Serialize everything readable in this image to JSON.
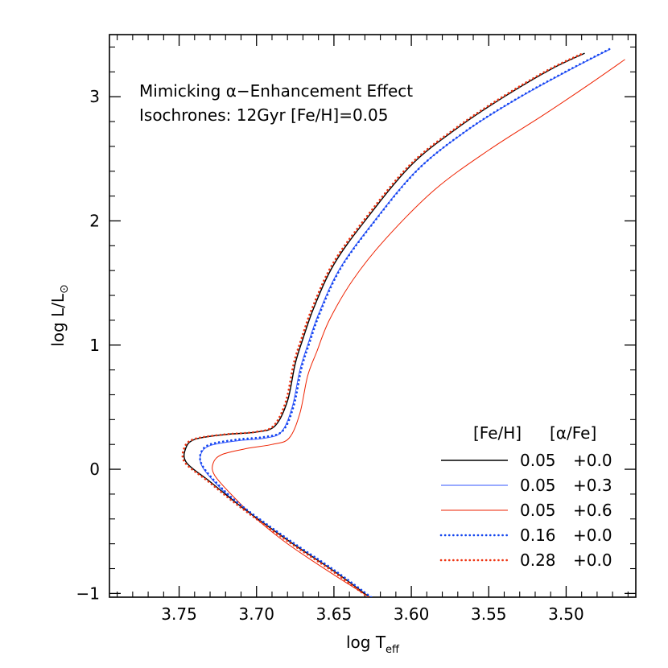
{
  "chart_data": {
    "type": "line",
    "annotations": [
      "Mimicking α−Enhancement Effect",
      "Isochrones: 12Gyr [Fe/H]=0.05"
    ],
    "xlabel": {
      "main": "log T",
      "sub": "eff"
    },
    "ylabel": {
      "main": "log L/L",
      "sub": "⊙"
    },
    "xlim": [
      3.795,
      3.455
    ],
    "ylim": [
      -1.03,
      3.5
    ],
    "x_ticks": [
      3.75,
      3.7,
      3.65,
      3.6,
      3.55,
      3.5
    ],
    "x_tick_labels": [
      "3.75",
      "3.70",
      "3.65",
      "3.60",
      "3.55",
      "3.50"
    ],
    "y_ticks": [
      -1,
      0,
      1,
      2,
      3
    ],
    "y_tick_labels": [
      "−1",
      "0",
      "1",
      "2",
      "3"
    ],
    "grid": false,
    "legend_position": "bottom-right",
    "legend_header": [
      "[Fe/H]",
      "[α/Fe]"
    ],
    "series": [
      {
        "feh": "0.05",
        "afe": "+0.0",
        "color": "#000000",
        "style": "solid",
        "x": [
          3.627,
          3.65,
          3.68,
          3.71,
          3.73,
          3.745,
          3.746,
          3.74,
          3.72,
          3.7,
          3.688,
          3.68,
          3.675,
          3.67,
          3.663,
          3.65,
          3.63,
          3.6,
          3.57,
          3.54,
          3.51,
          3.488
        ],
        "y": [
          -1.03,
          -0.82,
          -0.57,
          -0.3,
          -0.1,
          0.05,
          0.16,
          0.24,
          0.28,
          0.3,
          0.35,
          0.55,
          0.85,
          1.05,
          1.3,
          1.65,
          2.0,
          2.45,
          2.75,
          3.0,
          3.22,
          3.35
        ]
      },
      {
        "feh": "0.05",
        "afe": "+0.3",
        "color": "#3355ff",
        "style": "solid",
        "x": [
          3.627,
          3.65,
          3.68,
          3.71,
          3.725,
          3.735,
          3.736,
          3.73,
          3.712,
          3.695,
          3.684,
          3.677,
          3.672,
          3.667,
          3.66,
          3.647,
          3.627,
          3.597,
          3.565,
          3.532,
          3.5,
          3.472
        ],
        "y": [
          -1.03,
          -0.82,
          -0.57,
          -0.3,
          -0.13,
          0.02,
          0.12,
          0.19,
          0.23,
          0.25,
          0.3,
          0.5,
          0.8,
          1.0,
          1.25,
          1.6,
          1.95,
          2.4,
          2.72,
          2.98,
          3.2,
          3.38
        ]
      },
      {
        "feh": "0.05",
        "afe": "+0.6",
        "color": "#ee2200",
        "style": "solid",
        "x": [
          3.627,
          3.65,
          3.68,
          3.7,
          3.715,
          3.727,
          3.728,
          3.722,
          3.705,
          3.69,
          3.679,
          3.672,
          3.667,
          3.661,
          3.653,
          3.638,
          3.617,
          3.585,
          3.55,
          3.515,
          3.485,
          3.462
        ],
        "y": [
          -1.03,
          -0.85,
          -0.6,
          -0.4,
          -0.22,
          -0.05,
          0.05,
          0.12,
          0.17,
          0.2,
          0.25,
          0.45,
          0.75,
          0.95,
          1.2,
          1.52,
          1.85,
          2.25,
          2.57,
          2.85,
          3.1,
          3.3
        ]
      },
      {
        "feh": "0.16",
        "afe": "+0.0",
        "color": "#1144ee",
        "style": "dotted",
        "x": [
          3.626,
          3.65,
          3.68,
          3.71,
          3.725,
          3.735,
          3.736,
          3.73,
          3.712,
          3.695,
          3.683,
          3.676,
          3.671,
          3.666,
          3.659,
          3.646,
          3.626,
          3.596,
          3.564,
          3.531,
          3.499,
          3.471
        ],
        "y": [
          -1.03,
          -0.81,
          -0.56,
          -0.29,
          -0.12,
          0.03,
          0.13,
          0.2,
          0.24,
          0.26,
          0.31,
          0.51,
          0.81,
          1.01,
          1.26,
          1.61,
          1.96,
          2.41,
          2.73,
          2.99,
          3.21,
          3.39
        ]
      },
      {
        "feh": "0.28",
        "afe": "+0.0",
        "color": "#ee3311",
        "style": "dotted",
        "x": [
          3.628,
          3.651,
          3.681,
          3.711,
          3.731,
          3.746,
          3.747,
          3.741,
          3.721,
          3.701,
          3.689,
          3.681,
          3.676,
          3.671,
          3.664,
          3.651,
          3.631,
          3.601,
          3.571,
          3.541,
          3.511,
          3.489
        ],
        "y": [
          -1.03,
          -0.82,
          -0.57,
          -0.3,
          -0.1,
          0.05,
          0.16,
          0.24,
          0.28,
          0.3,
          0.35,
          0.55,
          0.85,
          1.05,
          1.3,
          1.65,
          2.0,
          2.45,
          2.75,
          3.0,
          3.22,
          3.35
        ]
      }
    ]
  }
}
